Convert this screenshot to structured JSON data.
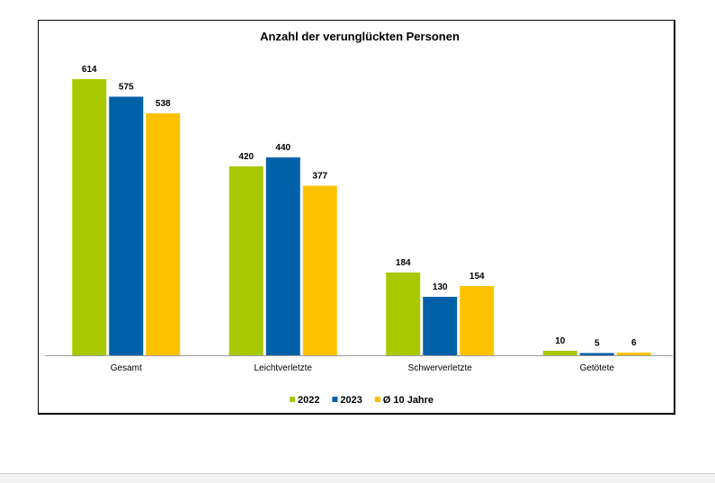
{
  "chart_data": {
    "type": "bar",
    "title": "Anzahl der verunglückten Personen",
    "categories": [
      "Gesamt",
      "Leichtverletzte",
      "Schwerverletzte",
      "Getötete"
    ],
    "series": [
      {
        "name": "2022",
        "color": "#a8c800",
        "values": [
          614,
          420,
          184,
          10
        ]
      },
      {
        "name": "2023",
        "color": "#0061a8",
        "values": [
          575,
          440,
          130,
          5
        ]
      },
      {
        "name": "Ø 10 Jahre",
        "color": "#fcc200",
        "values": [
          538,
          377,
          154,
          6
        ]
      }
    ],
    "xlabel": "",
    "ylabel": "",
    "ylim": [
      0,
      614
    ],
    "grid": false,
    "legend": "bottom"
  }
}
